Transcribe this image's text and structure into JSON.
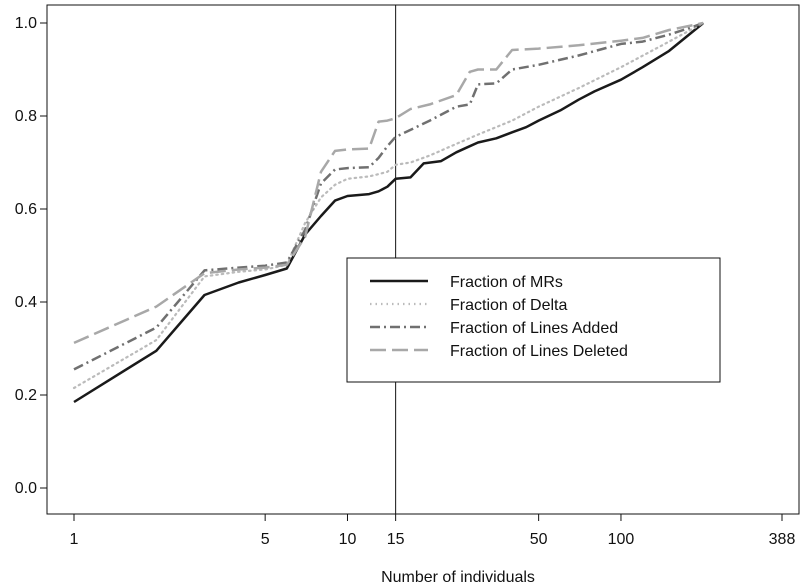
{
  "chart_data": {
    "type": "line",
    "title": "",
    "xlabel": "Number of individuals",
    "ylabel": "",
    "x_scale": "log",
    "xlim": [
      1,
      388
    ],
    "ylim": [
      0,
      1
    ],
    "x_ticks": [
      1,
      5,
      10,
      15,
      50,
      100,
      388
    ],
    "x_tick_labels": [
      "1",
      "5",
      "10",
      "15",
      "50",
      "100",
      "388"
    ],
    "y_ticks": [
      0,
      0.2,
      0.4,
      0.6,
      0.8,
      1.0
    ],
    "y_tick_labels": [
      "0.0",
      "0.2",
      "0.4",
      "0.6",
      "0.8",
      "1.0"
    ],
    "reference_line_x": 15,
    "grid": false,
    "legend_position": "center-right",
    "series": [
      {
        "name": "Fraction of MRs",
        "color": "#1a1a1a",
        "dash": "solid",
        "x": [
          1,
          2,
          3,
          4,
          5,
          6,
          7,
          8,
          9,
          10,
          12,
          13,
          14,
          15,
          17,
          19,
          22,
          25,
          28,
          30,
          35,
          40,
          45,
          50,
          60,
          70,
          80,
          100,
          120,
          150,
          200
        ],
        "y": [
          0.185,
          0.295,
          0.415,
          0.442,
          0.458,
          0.472,
          0.545,
          0.585,
          0.618,
          0.628,
          0.632,
          0.638,
          0.648,
          0.665,
          0.668,
          0.698,
          0.703,
          0.722,
          0.735,
          0.743,
          0.752,
          0.765,
          0.776,
          0.79,
          0.812,
          0.835,
          0.853,
          0.878,
          0.905,
          0.94,
          1.0
        ]
      },
      {
        "name": "Fraction of Delta",
        "color": "#bbbbbb",
        "dash": "dotted",
        "x": [
          1,
          2,
          3,
          4,
          5,
          6,
          7,
          8,
          9,
          10,
          12,
          13,
          14,
          15,
          17,
          20,
          25,
          30,
          40,
          50,
          70,
          100,
          150,
          200
        ],
        "y": [
          0.215,
          0.318,
          0.455,
          0.465,
          0.47,
          0.48,
          0.57,
          0.625,
          0.652,
          0.665,
          0.67,
          0.675,
          0.68,
          0.695,
          0.7,
          0.715,
          0.74,
          0.76,
          0.79,
          0.82,
          0.86,
          0.905,
          0.96,
          1.0
        ]
      },
      {
        "name": "Fraction of Lines Added",
        "color": "#707070",
        "dash": "dashdot",
        "x": [
          1,
          2,
          3,
          4,
          5,
          6,
          7,
          8,
          9,
          10,
          12,
          13,
          14,
          15,
          17,
          20,
          25,
          28,
          30,
          35,
          40,
          50,
          70,
          100,
          120,
          150,
          180,
          200
        ],
        "y": [
          0.255,
          0.345,
          0.468,
          0.474,
          0.478,
          0.485,
          0.555,
          0.655,
          0.685,
          0.688,
          0.69,
          0.71,
          0.735,
          0.755,
          0.77,
          0.79,
          0.82,
          0.825,
          0.868,
          0.87,
          0.9,
          0.91,
          0.93,
          0.955,
          0.96,
          0.975,
          0.99,
          1.0
        ]
      },
      {
        "name": "Fraction of Lines Deleted",
        "color": "#a8a8a8",
        "dash": "longdash",
        "x": [
          1,
          2,
          3,
          4,
          5,
          6,
          7,
          8,
          9,
          10,
          12,
          13,
          14,
          15,
          17,
          20,
          25,
          28,
          30,
          35,
          40,
          50,
          70,
          100,
          120,
          150,
          200
        ],
        "y": [
          0.312,
          0.39,
          0.462,
          0.47,
          0.474,
          0.48,
          0.54,
          0.68,
          0.725,
          0.728,
          0.73,
          0.788,
          0.79,
          0.795,
          0.815,
          0.825,
          0.845,
          0.895,
          0.9,
          0.9,
          0.942,
          0.945,
          0.952,
          0.962,
          0.968,
          0.985,
          1.0
        ]
      }
    ]
  }
}
